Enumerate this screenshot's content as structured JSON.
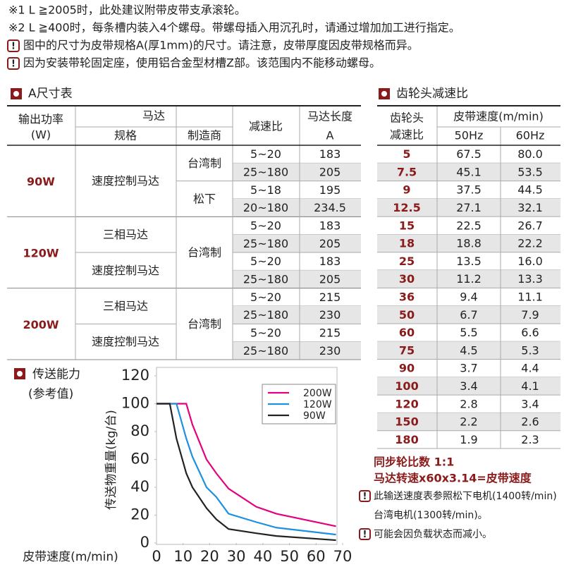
{
  "notes": [
    "※1 L ≧2005时，此处建议附带皮带支承滚轮。",
    "※2 L ≧400时，每条槽内装入4个螺母。带螺母插入用沉孔时，请通过增加加工进行指定。",
    "图中的尺寸为皮带规格A(厚1mm)的尺寸。请注意，皮带厚度因皮带规格而异。",
    "因为安装带轮固定座，使用铝合金型材槽Z部。该范围内不能移动螺母。"
  ],
  "table_a": {
    "title": "A尺寸表",
    "headers": {
      "power": [
        "输出功率",
        "(W)"
      ],
      "motor": "马达",
      "spec": "规格",
      "maker": "制造商",
      "ratio": "减速比",
      "length": [
        "马达长度",
        "A"
      ]
    },
    "groups": [
      {
        "power": "90W",
        "specs": [
          "速度控制马达"
        ],
        "makers": [
          "台湾制",
          "松下"
        ],
        "rows": [
          [
            "5~20",
            183
          ],
          [
            "25~180",
            205
          ],
          [
            "5~18",
            195
          ],
          [
            "20~180",
            234.5
          ]
        ]
      },
      {
        "power": "120W",
        "specs": [
          "三相马达",
          "速度控制马达"
        ],
        "makers": [
          "台湾制"
        ],
        "rows": [
          [
            "5~20",
            183
          ],
          [
            "25~180",
            205
          ],
          [
            "5~20",
            183
          ],
          [
            "25~180",
            205
          ]
        ]
      },
      {
        "power": "200W",
        "specs": [
          "三相马达",
          "速度控制马达"
        ],
        "makers": [
          "台湾制"
        ],
        "rows": [
          [
            "5~20",
            215
          ],
          [
            "25~180",
            230
          ],
          [
            "5~20",
            215
          ],
          [
            "25~180",
            230
          ]
        ]
      }
    ]
  },
  "ratio_table": {
    "title": "齿轮头减速比",
    "headers": {
      "ratio": [
        "齿轮头",
        "减速比"
      ],
      "speed": "皮带速度(m/min)",
      "hz": [
        "50Hz",
        "60Hz"
      ]
    },
    "rows": [
      [
        "5",
        "67.5",
        "80.0"
      ],
      [
        "7.5",
        "45.1",
        "53.5"
      ],
      [
        "9",
        "37.5",
        "44.5"
      ],
      [
        "12.5",
        "27.1",
        "32.1"
      ],
      [
        "15",
        "22.5",
        "26.7"
      ],
      [
        "18",
        "18.8",
        "22.2"
      ],
      [
        "25",
        "13.5",
        "16.0"
      ],
      [
        "30",
        "11.2",
        "13.3"
      ],
      [
        "36",
        "9.4",
        "11.1"
      ],
      [
        "50",
        "6.7",
        "7.9"
      ],
      [
        "60",
        "5.5",
        "6.6"
      ],
      [
        "75",
        "4.5",
        "5.3"
      ],
      [
        "90",
        "3.7",
        "4.4"
      ],
      [
        "100",
        "3.4",
        "4.1"
      ],
      [
        "120",
        "2.8",
        "3.4"
      ],
      [
        "150",
        "2.2",
        "2.6"
      ],
      [
        "180",
        "1.9",
        "2.3"
      ]
    ],
    "formula": [
      "同步轮比数 1:1",
      "马达转速x60x3.14=皮带速度"
    ],
    "footnotes": [
      [
        "此输送速度表参照松下电机(1400转/min)",
        "台湾电机(1300转/min)。"
      ],
      [
        "可能会因负载状态而减小。"
      ]
    ]
  },
  "chart_data": {
    "type": "line",
    "title": "传送能力",
    "subtitle": "(参考值)",
    "x_label": "皮带速度(m/min)",
    "y_label": "传送物重量(kg/台)",
    "xlim": [
      0,
      70
    ],
    "ylim": [
      0,
      120
    ],
    "xticks": [
      0,
      10,
      20,
      30,
      40,
      50,
      60,
      70
    ],
    "yticks": [
      0,
      20,
      40,
      60,
      80,
      100,
      120
    ],
    "series": [
      {
        "name": "200W",
        "color": "#e4007f",
        "x": [
          0,
          11.2,
          13.5,
          18.8,
          22.5,
          27.1,
          37.5,
          45.1,
          67.5
        ],
        "values": [
          100,
          100,
          85,
          60,
          50,
          39,
          26,
          21,
          12
        ]
      },
      {
        "name": "120W",
        "color": "#1e90e0",
        "x": [
          0,
          7.5,
          11.2,
          13.5,
          18.8,
          22.5,
          27.1,
          37.5,
          45.1,
          67.5
        ],
        "values": [
          100,
          100,
          75,
          62,
          40,
          33,
          21,
          15,
          11,
          6
        ]
      },
      {
        "name": "90W",
        "color": "#222222",
        "x": [
          0,
          5,
          7.5,
          11.2,
          13.5,
          18.8,
          22.5,
          27.1,
          37.5,
          45.1,
          67.5
        ],
        "values": [
          100,
          100,
          75,
          50,
          40,
          25,
          17,
          10,
          7,
          5,
          2
        ]
      }
    ]
  }
}
